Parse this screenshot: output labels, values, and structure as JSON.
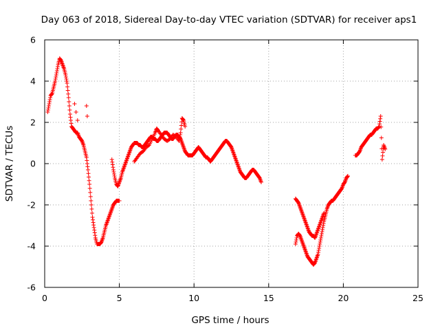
{
  "chart_data": {
    "type": "scatter",
    "title": "Day 063 of 2018, Sidereal Day-to-day VTEC variation (SDTVAR) for receiver aps1",
    "xlabel": "GPS time / hours",
    "ylabel": "SDTVAR / TECUs",
    "xlim": [
      0,
      25
    ],
    "ylim": [
      -6,
      6
    ],
    "xticks": [
      0,
      5,
      10,
      15,
      20,
      25
    ],
    "yticks": [
      -6,
      -4,
      -2,
      0,
      2,
      4,
      6
    ],
    "xtick_labels": [
      "0",
      "5",
      "10",
      "15",
      "20",
      "25"
    ],
    "ytick_labels": [
      "-6",
      "-4",
      "-2",
      "0",
      "2",
      "4",
      "6"
    ],
    "grid": true,
    "legend": "none",
    "marker": "plus",
    "color": "#ff0000",
    "series": [
      {
        "x": [
          0.2,
          0.3,
          0.4,
          0.5,
          0.6,
          0.7,
          0.8,
          0.9,
          1.0,
          1.1,
          1.2,
          1.3,
          1.4,
          1.5,
          1.6,
          1.7,
          1.8,
          1.9,
          2.0,
          2.1,
          2.2,
          2.3,
          2.4,
          2.5,
          2.6,
          2.7,
          2.8,
          2.9,
          3.0,
          3.1,
          3.2,
          3.3,
          3.4,
          3.5,
          3.6,
          3.7,
          3.8,
          3.9,
          4.0,
          4.1,
          4.2,
          4.3,
          4.4,
          4.5,
          4.6,
          4.7,
          4.8,
          4.9,
          5.0
        ],
        "y": [
          2.5,
          2.9,
          3.3,
          3.4,
          3.7,
          4.0,
          4.4,
          4.8,
          5.1,
          5.0,
          4.8,
          4.6,
          4.3,
          3.9,
          3.2,
          2.4,
          1.8,
          1.7,
          1.6,
          1.5,
          1.5,
          1.3,
          1.2,
          1.1,
          0.9,
          0.6,
          0.3,
          -0.3,
          -1.0,
          -1.8,
          -2.6,
          -3.1,
          -3.6,
          -3.9,
          -3.9,
          -3.9,
          -3.8,
          -3.6,
          -3.3,
          -3.0,
          -2.8,
          -2.6,
          -2.4,
          -2.2,
          -2.0,
          -1.9,
          -1.8,
          -1.8,
          -1.8
        ]
      },
      {
        "x": [
          4.5,
          4.6,
          4.7,
          4.8,
          4.9,
          5.0,
          5.1,
          5.2,
          5.3,
          5.4,
          5.5,
          5.6,
          5.7,
          5.8,
          5.9,
          6.0,
          6.1,
          6.2,
          6.3,
          6.4,
          6.5,
          6.6,
          6.7,
          6.8,
          6.9,
          7.0,
          7.1,
          7.2,
          7.3,
          7.4,
          7.5,
          7.6,
          7.7,
          7.8,
          7.9,
          8.0,
          8.1,
          8.2,
          8.3,
          8.4,
          8.5,
          8.6,
          8.7,
          8.8,
          8.9,
          9.0,
          9.1,
          9.2,
          9.3,
          9.4,
          9.5,
          9.6,
          9.7,
          9.8,
          9.9,
          10.0,
          10.1,
          10.2,
          10.3,
          10.4,
          10.5,
          10.6,
          10.7,
          10.8,
          10.9,
          11.0,
          11.1,
          11.2,
          11.3,
          11.4,
          11.5,
          11.6,
          11.7,
          11.8,
          11.9,
          12.0,
          12.1,
          12.2,
          12.3,
          12.4,
          12.5,
          12.6,
          12.7,
          12.8,
          12.9,
          13.0,
          13.1,
          13.2,
          13.3,
          13.4,
          13.5,
          13.6,
          13.7,
          13.8,
          13.9,
          14.0,
          14.1,
          14.2,
          14.3,
          14.4,
          14.5
        ],
        "y": [
          0.2,
          -0.3,
          -0.7,
          -1.0,
          -1.1,
          -0.9,
          -0.7,
          -0.4,
          -0.2,
          0.0,
          0.2,
          0.4,
          0.6,
          0.8,
          0.9,
          1.0,
          1.0,
          1.0,
          0.9,
          0.9,
          0.8,
          0.8,
          0.9,
          1.0,
          1.1,
          1.2,
          1.3,
          1.3,
          1.2,
          1.2,
          1.1,
          1.1,
          1.2,
          1.3,
          1.4,
          1.5,
          1.5,
          1.5,
          1.4,
          1.3,
          1.2,
          1.2,
          1.3,
          1.4,
          1.4,
          1.3,
          1.2,
          1.0,
          0.8,
          0.6,
          0.5,
          0.4,
          0.4,
          0.4,
          0.4,
          0.5,
          0.6,
          0.7,
          0.8,
          0.7,
          0.6,
          0.5,
          0.4,
          0.3,
          0.3,
          0.2,
          0.1,
          0.2,
          0.3,
          0.4,
          0.5,
          0.6,
          0.7,
          0.8,
          0.9,
          1.0,
          1.1,
          1.1,
          1.0,
          0.9,
          0.8,
          0.6,
          0.4,
          0.2,
          0.0,
          -0.2,
          -0.4,
          -0.5,
          -0.6,
          -0.7,
          -0.7,
          -0.6,
          -0.5,
          -0.4,
          -0.3,
          -0.3,
          -0.4,
          -0.5,
          -0.6,
          -0.7,
          -0.9
        ]
      },
      {
        "x": [
          6.0,
          6.2,
          6.4,
          6.6,
          6.8,
          7.0,
          7.2,
          7.4,
          7.5,
          7.6,
          7.8,
          8.0,
          8.2,
          8.4,
          8.6,
          8.8,
          9.0,
          9.1,
          9.2,
          9.3,
          9.4
        ],
        "y": [
          0.1,
          0.3,
          0.5,
          0.6,
          0.8,
          0.9,
          1.2,
          1.5,
          1.7,
          1.6,
          1.4,
          1.2,
          1.1,
          1.2,
          1.4,
          1.3,
          1.1,
          1.5,
          2.2,
          2.1,
          1.8
        ]
      },
      {
        "x": [
          16.8,
          16.9,
          17.0,
          17.1,
          17.2,
          17.3,
          17.4,
          17.5,
          17.6,
          17.7,
          17.8,
          17.9,
          18.0,
          18.1,
          18.2,
          18.3,
          18.4,
          18.5,
          18.6,
          18.7,
          18.8,
          18.9,
          19.0,
          19.1,
          19.2,
          19.3,
          19.4,
          19.5,
          19.6,
          19.7,
          19.8,
          19.9,
          20.0,
          20.1,
          20.2,
          20.3
        ],
        "y": [
          -3.9,
          -3.5,
          -3.4,
          -3.5,
          -3.7,
          -3.9,
          -4.1,
          -4.3,
          -4.5,
          -4.6,
          -4.7,
          -4.8,
          -4.9,
          -4.8,
          -4.6,
          -4.4,
          -4.0,
          -3.6,
          -3.2,
          -2.8,
          -2.5,
          -2.2,
          -2.0,
          -1.9,
          -1.8,
          -1.8,
          -1.7,
          -1.6,
          -1.5,
          -1.4,
          -1.3,
          -1.2,
          -1.0,
          -0.9,
          -0.7,
          -0.6
        ]
      },
      {
        "x": [
          16.8,
          16.9,
          17.0,
          17.1,
          17.2,
          17.3,
          17.4,
          17.5,
          17.6,
          17.7,
          17.8,
          17.9,
          18.0,
          18.1,
          18.2,
          18.3,
          18.4,
          18.5,
          18.6,
          18.7
        ],
        "y": [
          -1.7,
          -1.8,
          -1.9,
          -2.1,
          -2.3,
          -2.5,
          -2.7,
          -2.9,
          -3.1,
          -3.3,
          -3.4,
          -3.5,
          -3.5,
          -3.6,
          -3.4,
          -3.2,
          -3.0,
          -2.8,
          -2.6,
          -2.4
        ]
      },
      {
        "x": [
          20.8,
          20.9,
          21.0,
          21.1,
          21.2,
          21.3,
          21.4,
          21.5,
          21.6,
          21.7,
          21.8,
          21.9,
          22.0,
          22.1,
          22.2,
          22.3,
          22.4,
          22.5,
          22.6,
          22.7,
          22.8
        ],
        "y": [
          0.4,
          0.4,
          0.5,
          0.6,
          0.8,
          0.9,
          1.0,
          1.1,
          1.2,
          1.3,
          1.4,
          1.4,
          1.5,
          1.6,
          1.7,
          1.7,
          1.8,
          2.3,
          0.2,
          0.9,
          0.7
        ]
      }
    ],
    "outliers": {
      "x": [
        2.0,
        2.1,
        2.2,
        2.8,
        2.85
      ],
      "y": [
        2.9,
        2.5,
        2.1,
        2.8,
        2.3
      ]
    }
  }
}
